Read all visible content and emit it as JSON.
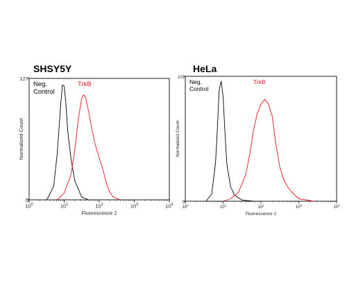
{
  "chart_data": [
    {
      "type": "line",
      "title": "SHSY5Y",
      "xlabel": "Fluorescence 2",
      "ylabel": "Normalized Count",
      "xscale": "log",
      "xlim": [
        1,
        10000
      ],
      "ylim": [
        0,
        127
      ],
      "y_ticks": [
        "0",
        "127"
      ],
      "x_ticks": [
        {
          "base": "10",
          "exp": "0"
        },
        {
          "base": "10",
          "exp": "1"
        },
        {
          "base": "10",
          "exp": "2"
        },
        {
          "base": "10",
          "exp": "3"
        },
        {
          "base": "10",
          "exp": "4"
        }
      ],
      "grid": false,
      "legend_entries": [
        {
          "label_lines": [
            "Neg.",
            "Control"
          ],
          "color": "#000000",
          "placement": "top-left"
        },
        {
          "label_lines": [
            "TrkB"
          ],
          "color": "#e8131d",
          "placement": "top-center"
        }
      ],
      "series": [
        {
          "color": "#000000",
          "x": [
            3.2,
            5,
            6.3,
            7.9,
            8.9,
            10,
            11.2,
            12.6,
            15.8,
            20,
            31.6,
            50
          ],
          "y": [
            0,
            14,
            48,
            98,
            120,
            119,
            100,
            72,
            42,
            20,
            3,
            0
          ]
        },
        {
          "color": "#e8131d",
          "x": [
            6.3,
            10,
            15.8,
            20,
            25.1,
            31.6,
            35.5,
            39.8,
            50.1,
            63.1,
            79.4,
            100,
            125.9,
            158.5,
            199.5,
            251.2,
            398.1
          ],
          "y": [
            0,
            7,
            27,
            52,
            84,
            106,
            110,
            108,
            92,
            72,
            56,
            44,
            32,
            18,
            8,
            3,
            0
          ]
        }
      ]
    },
    {
      "type": "line",
      "title": "HeLa",
      "xlabel": "Fluorescence 2",
      "ylabel": "Normalized Count",
      "xscale": "log",
      "xlim": [
        1,
        10000
      ],
      "ylim": [
        0,
        103
      ],
      "y_ticks": [
        "0",
        "103"
      ],
      "x_ticks": [
        {
          "base": "10",
          "exp": "0"
        },
        {
          "base": "10",
          "exp": "1"
        },
        {
          "base": "10",
          "exp": "2"
        },
        {
          "base": "10",
          "exp": "3"
        },
        {
          "base": "10",
          "exp": "4"
        }
      ],
      "grid": false,
      "legend_entries": [
        {
          "label_lines": [
            "Neg.",
            "Control"
          ],
          "color": "#000000",
          "placement": "top-left"
        },
        {
          "label_lines": [
            "TrkB"
          ],
          "color": "#e8131d",
          "placement": "top-center"
        }
      ],
      "series": [
        {
          "color": "#000000",
          "x": [
            3.5,
            5,
            6.3,
            7.1,
            7.9,
            8.9,
            10,
            11.2,
            12.6,
            15.8,
            20,
            31.6,
            63.1
          ],
          "y": [
            0,
            6,
            32,
            62,
            92,
            99,
            86,
            56,
            30,
            12,
            5,
            1,
            0
          ]
        },
        {
          "color": "#e8131d",
          "x": [
            10,
            15.8,
            25.1,
            39.8,
            50.1,
            63.1,
            79.4,
            100,
            125.9,
            158.5,
            199.5,
            251.2,
            316.2,
            398.1,
            501.2,
            631,
            1000,
            2511.9
          ],
          "y": [
            0,
            2,
            7,
            22,
            38,
            58,
            72,
            80,
            84,
            80,
            70,
            46,
            28,
            18,
            12,
            8,
            2,
            0
          ]
        }
      ]
    }
  ]
}
